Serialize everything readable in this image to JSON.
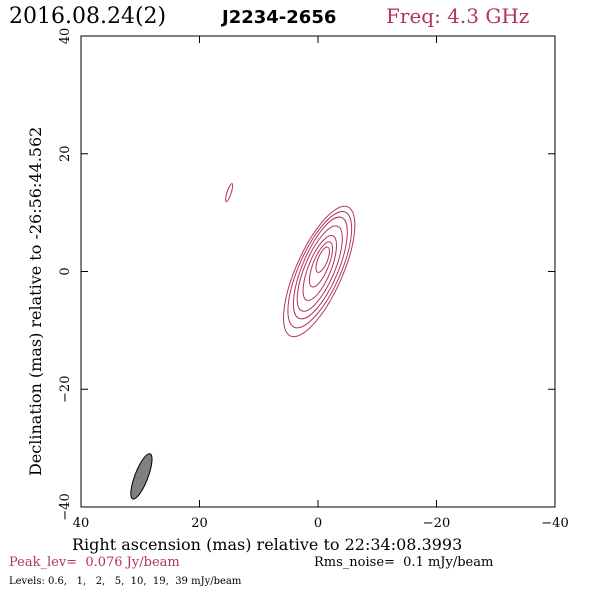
{
  "header": {
    "date_label": "2016.08.24(2)",
    "source_label": "J2234-2656",
    "freq_label": "Freq: 4.3 GHz"
  },
  "chart_data": {
    "type": "contour",
    "xlabel": "Right ascension (mas) relative to 22:34:08.3993",
    "ylabel": "Declination (mas) relative to -26:56:44.562",
    "xlim": [
      40,
      -40
    ],
    "ylim": [
      -40,
      40
    ],
    "x_ticks": [
      40,
      20,
      0,
      -20,
      -40
    ],
    "y_ticks": [
      -40,
      -20,
      0,
      20,
      40
    ],
    "x_tick_labels": [
      "40",
      "20",
      "0",
      "−20",
      "−40"
    ],
    "y_tick_labels": [
      "−40",
      "−20",
      "0",
      "20",
      "40"
    ],
    "grid": false,
    "contour_color": "#b2335e",
    "beam": {
      "center_x": 29.8,
      "center_y": -34.8,
      "major_mas": 8.2,
      "minor_mas": 2.2,
      "pa_deg": 21,
      "color": "#808080"
    },
    "components": [
      {
        "name": "core",
        "levels_mjy": [
          0.6,
          1,
          2,
          5,
          10,
          19,
          39
        ],
        "contours": [
          {
            "level_mjy": 0.6,
            "cx": -0.2,
            "cy": 0.0,
            "a_mas": 12.0,
            "b_mas": 3.9,
            "angle_deg": 66
          },
          {
            "level_mjy": 1,
            "cx": -0.3,
            "cy": 0.3,
            "a_mas": 10.7,
            "b_mas": 3.5,
            "angle_deg": 66
          },
          {
            "level_mjy": 2,
            "cx": -0.4,
            "cy": 0.6,
            "a_mas": 9.3,
            "b_mas": 3.0,
            "angle_deg": 67
          },
          {
            "level_mjy": 5,
            "cx": -0.3,
            "cy": 0.5,
            "a_mas": 7.8,
            "b_mas": 2.5,
            "angle_deg": 67
          },
          {
            "level_mjy": 10,
            "cx": -0.3,
            "cy": 0.6,
            "a_mas": 5.9,
            "b_mas": 1.9,
            "angle_deg": 68
          },
          {
            "level_mjy": 19,
            "cx": -0.5,
            "cy": 1.2,
            "a_mas": 4.1,
            "b_mas": 1.3,
            "angle_deg": 68
          },
          {
            "level_mjy": 39,
            "cx": -0.8,
            "cy": 2.0,
            "a_mas": 2.3,
            "b_mas": 0.8,
            "angle_deg": 68
          }
        ]
      },
      {
        "name": "secondary",
        "levels_mjy": [
          0.6
        ],
        "contours": [
          {
            "level_mjy": 0.6,
            "cx": 15.0,
            "cy": 13.4,
            "a_mas": 1.6,
            "b_mas": 0.35,
            "angle_deg": 72
          }
        ]
      }
    ]
  },
  "footer": {
    "peak_label": "Peak_lev=  0.076 Jy/beam",
    "rms_label": "Rms_noise=  0.1 mJy/beam",
    "levels_label": "Levels: 0.6,   1,   2,   5,  10,  19,  39 mJy/beam"
  },
  "colors": {
    "accent": "#b2335e",
    "text": "#000000",
    "axes": "#000000",
    "beam": "#808080"
  }
}
